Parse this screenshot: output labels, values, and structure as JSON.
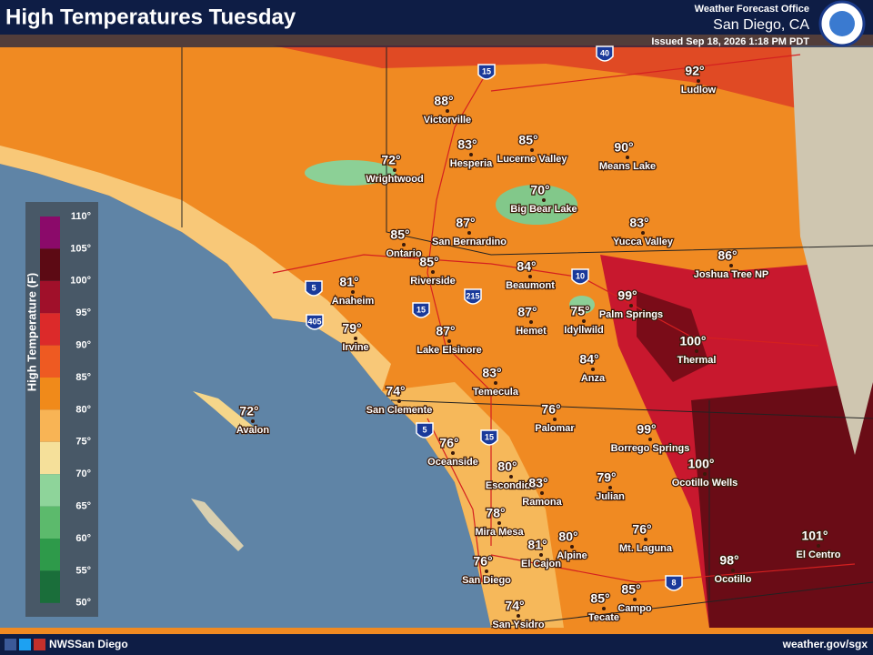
{
  "header": {
    "title": "High Temperatures Tuesday",
    "office": "Weather Forecast Office",
    "location": "San Diego, CA",
    "issued": "Issued Sep 18, 2026 1:18 PM PDT"
  },
  "legend": {
    "title": "High Temperature (F)",
    "labels": [
      "110°",
      "105°",
      "100°",
      "95°",
      "90°",
      "85°",
      "80°",
      "75°",
      "70°",
      "65°",
      "60°",
      "55°",
      "50°"
    ]
  },
  "cities": [
    {
      "temp": "88°",
      "name": "Victorville"
    },
    {
      "temp": "83°",
      "name": "Hesperia"
    },
    {
      "temp": "85°",
      "name": "Lucerne Valley"
    },
    {
      "temp": "90°",
      "name": "Means Lake"
    },
    {
      "temp": "92°",
      "name": "Ludlow"
    },
    {
      "temp": "72°",
      "name": "Wrightwood"
    },
    {
      "temp": "70°",
      "name": "Big Bear Lake"
    },
    {
      "temp": "83°",
      "name": "Yucca Valley"
    },
    {
      "temp": "86°",
      "name": "Joshua Tree NP"
    },
    {
      "temp": "85°",
      "name": "Ontario"
    },
    {
      "temp": "87°",
      "name": "San Bernardino"
    },
    {
      "temp": "85°",
      "name": "Riverside"
    },
    {
      "temp": "84°",
      "name": "Beaumont"
    },
    {
      "temp": "81°",
      "name": "Anaheim"
    },
    {
      "temp": "79°",
      "name": "Irvine"
    },
    {
      "temp": "87°",
      "name": "Lake Elsinore"
    },
    {
      "temp": "87°",
      "name": "Hemet"
    },
    {
      "temp": "75°",
      "name": "Idyllwild"
    },
    {
      "temp": "99°",
      "name": "Palm Springs"
    },
    {
      "temp": "100°",
      "name": "Thermal"
    },
    {
      "temp": "84°",
      "name": "Anza"
    },
    {
      "temp": "83°",
      "name": "Temecula"
    },
    {
      "temp": "74°",
      "name": "San Clemente"
    },
    {
      "temp": "72°",
      "name": "Avalon"
    },
    {
      "temp": "76°",
      "name": "Palomar"
    },
    {
      "temp": "99°",
      "name": "Borrego Springs"
    },
    {
      "temp": "76°",
      "name": "Oceanside"
    },
    {
      "temp": "100°",
      "name": "Ocotillo Wells"
    },
    {
      "temp": "80°",
      "name": "Escondido"
    },
    {
      "temp": "83°",
      "name": "Ramona"
    },
    {
      "temp": "79°",
      "name": "Julian"
    },
    {
      "temp": "78°",
      "name": "Mira Mesa"
    },
    {
      "temp": "81°",
      "name": "El Cajon"
    },
    {
      "temp": "80°",
      "name": "Alpine"
    },
    {
      "temp": "76°",
      "name": "Mt. Laguna"
    },
    {
      "temp": "101°",
      "name": "El Centro"
    },
    {
      "temp": "98°",
      "name": "Ocotillo"
    },
    {
      "temp": "76°",
      "name": "San Diego"
    },
    {
      "temp": "85°",
      "name": "Campo"
    },
    {
      "temp": "85°",
      "name": "Tecate"
    },
    {
      "temp": "74°",
      "name": "San Ysidro"
    }
  ],
  "highways": [
    "15",
    "40",
    "10",
    "5",
    "405",
    "15",
    "215",
    "5",
    "15",
    "8"
  ],
  "footer": {
    "social": "NWSSan Diego",
    "url": "weather.gov/sgx"
  }
}
